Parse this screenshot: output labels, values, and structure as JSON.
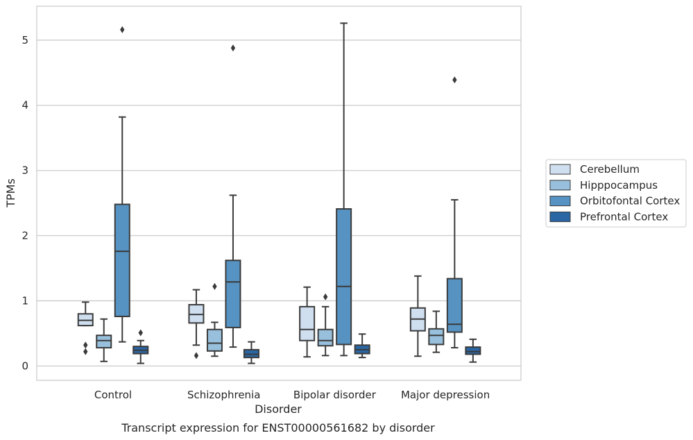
{
  "caption": "Transcript expression for ENST00000561682 by disorder",
  "colors": {
    "Cerebellum": "#cfdff0",
    "Hipppocampus": "#98c0dc",
    "Orbitofontal Cortex": "#5693c2",
    "Prefrontal Cortex": "#2a66a3",
    "grid": "#cccccc",
    "line": "#3a3a3a"
  },
  "chart_data": {
    "type": "box",
    "title": "",
    "xlabel": "Disorder",
    "ylabel": "TPMs",
    "ylim": [
      -0.22,
      5.52
    ],
    "yticks": [
      0,
      1,
      2,
      3,
      4,
      5
    ],
    "grid": "horizontal",
    "legend_position": "right",
    "categories": [
      "Control",
      "Schizophrenia",
      "Bipolar disorder",
      "Major depression"
    ],
    "series": [
      {
        "name": "Cerebellum",
        "boxes": [
          {
            "whisker_low": 0.62,
            "q1": 0.62,
            "median": 0.7,
            "q3": 0.8,
            "whisker_high": 0.98,
            "outliers": [
              0.32,
              0.22
            ]
          },
          {
            "whisker_low": 0.32,
            "q1": 0.66,
            "median": 0.79,
            "q3": 0.94,
            "whisker_high": 1.17,
            "outliers": [
              0.16
            ]
          },
          {
            "whisker_low": 0.14,
            "q1": 0.39,
            "median": 0.56,
            "q3": 0.91,
            "whisker_high": 1.21,
            "outliers": []
          },
          {
            "whisker_low": 0.15,
            "q1": 0.54,
            "median": 0.72,
            "q3": 0.89,
            "whisker_high": 1.38,
            "outliers": []
          }
        ]
      },
      {
        "name": "Hipppocampus",
        "boxes": [
          {
            "whisker_low": 0.07,
            "q1": 0.28,
            "median": 0.39,
            "q3": 0.47,
            "whisker_high": 0.72,
            "outliers": []
          },
          {
            "whisker_low": 0.15,
            "q1": 0.23,
            "median": 0.35,
            "q3": 0.56,
            "whisker_high": 0.67,
            "outliers": [
              1.22
            ]
          },
          {
            "whisker_low": 0.16,
            "q1": 0.31,
            "median": 0.39,
            "q3": 0.56,
            "whisker_high": 0.91,
            "outliers": [
              1.06
            ]
          },
          {
            "whisker_low": 0.21,
            "q1": 0.33,
            "median": 0.47,
            "q3": 0.57,
            "whisker_high": 0.84,
            "outliers": []
          }
        ]
      },
      {
        "name": "Orbitofontal Cortex",
        "boxes": [
          {
            "whisker_low": 0.37,
            "q1": 0.76,
            "median": 1.76,
            "q3": 2.48,
            "whisker_high": 3.82,
            "outliers": [
              5.16
            ]
          },
          {
            "whisker_low": 0.29,
            "q1": 0.59,
            "median": 1.29,
            "q3": 1.62,
            "whisker_high": 2.62,
            "outliers": [
              4.88
            ]
          },
          {
            "whisker_low": 0.16,
            "q1": 0.33,
            "median": 1.22,
            "q3": 2.41,
            "whisker_high": 5.26,
            "outliers": []
          },
          {
            "whisker_low": 0.28,
            "q1": 0.52,
            "median": 0.64,
            "q3": 1.34,
            "whisker_high": 2.55,
            "outliers": [
              4.39
            ]
          }
        ]
      },
      {
        "name": "Prefrontal Cortex",
        "boxes": [
          {
            "whisker_low": 0.04,
            "q1": 0.19,
            "median": 0.24,
            "q3": 0.3,
            "whisker_high": 0.39,
            "outliers": [
              0.51
            ]
          },
          {
            "whisker_low": 0.04,
            "q1": 0.13,
            "median": 0.18,
            "q3": 0.25,
            "whisker_high": 0.37,
            "outliers": []
          },
          {
            "whisker_low": 0.13,
            "q1": 0.19,
            "median": 0.25,
            "q3": 0.32,
            "whisker_high": 0.49,
            "outliers": []
          },
          {
            "whisker_low": 0.06,
            "q1": 0.18,
            "median": 0.22,
            "q3": 0.29,
            "whisker_high": 0.41,
            "outliers": []
          }
        ]
      }
    ]
  }
}
